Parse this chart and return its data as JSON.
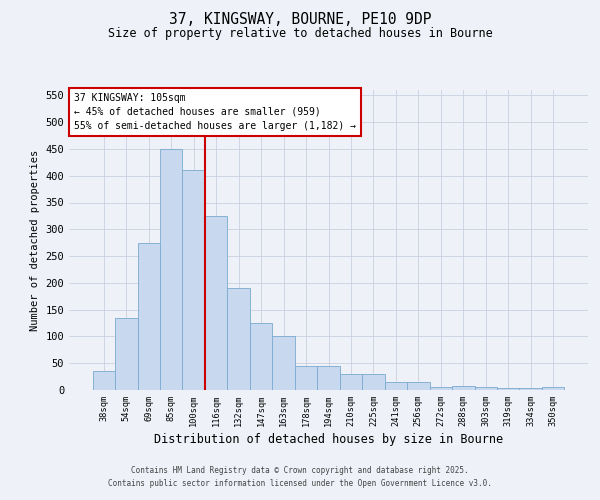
{
  "title_line1": "37, KINGSWAY, BOURNE, PE10 9DP",
  "title_line2": "Size of property relative to detached houses in Bourne",
  "xlabel": "Distribution of detached houses by size in Bourne",
  "ylabel": "Number of detached properties",
  "bins": [
    "38sqm",
    "54sqm",
    "69sqm",
    "85sqm",
    "100sqm",
    "116sqm",
    "132sqm",
    "147sqm",
    "163sqm",
    "178sqm",
    "194sqm",
    "210sqm",
    "225sqm",
    "241sqm",
    "256sqm",
    "272sqm",
    "288sqm",
    "303sqm",
    "319sqm",
    "334sqm",
    "350sqm"
  ],
  "values": [
    35,
    135,
    275,
    450,
    410,
    325,
    190,
    125,
    100,
    45,
    45,
    30,
    30,
    15,
    15,
    5,
    8,
    5,
    3,
    3,
    5
  ],
  "bar_color": "#c8d8ee",
  "bar_edge_color": "#7aaad0",
  "grid_color": "#c8d0e0",
  "vline_color": "#cc0000",
  "vline_pos": 4.5,
  "annotation_text_line1": "37 KINGSWAY: 105sqm",
  "annotation_text_line2": "← 45% of detached houses are smaller (959)",
  "annotation_text_line3": "55% of semi-detached houses are larger (1,182) →",
  "annotation_box_color": "#cc0000",
  "annotation_bg": "#ffffff",
  "ylim": [
    0,
    560
  ],
  "yticks": [
    0,
    50,
    100,
    150,
    200,
    250,
    300,
    350,
    400,
    450,
    500,
    550
  ],
  "footer_line1": "Contains HM Land Registry data © Crown copyright and database right 2025.",
  "footer_line2": "Contains public sector information licensed under the Open Government Licence v3.0.",
  "bg_color": "#eef2f8"
}
